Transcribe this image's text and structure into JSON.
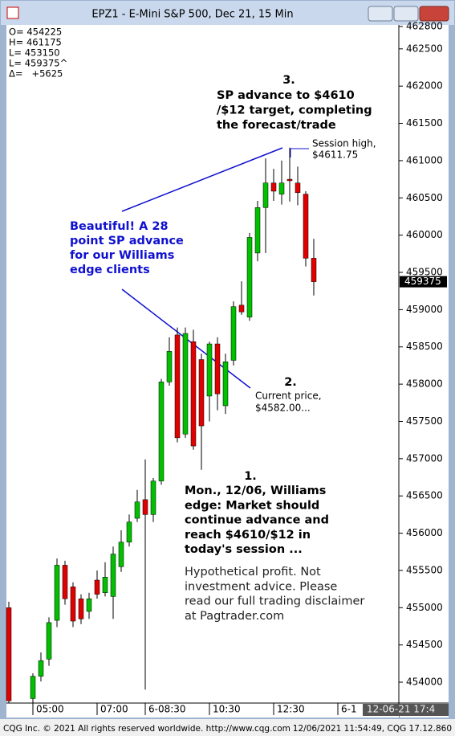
{
  "window_title": "EPZ1 - E-Mini S&P 500, Dec 21, 15 Min",
  "chart_data": {
    "type": "candlestick",
    "summary": [
      "O= 454225",
      "H= 461175",
      "L= 453150",
      "L= 459375^",
      "Δ=   +5625"
    ],
    "categories": [
      null,
      null,
      null,
      "05:00",
      null,
      null,
      null,
      null,
      null,
      null,
      null,
      "07:00",
      null,
      null,
      null,
      null,
      null,
      "6-08:30",
      null,
      null,
      null,
      null,
      null,
      null,
      null,
      "10:30",
      null,
      null,
      null,
      null,
      null,
      null,
      null,
      "12:30",
      null,
      null,
      null,
      null,
      null,
      null,
      null,
      "6-1"
    ],
    "open": [
      455000,
      null,
      null,
      453780,
      454080,
      454310,
      454830,
      455570,
      455280,
      455120,
      454950,
      455370,
      455200,
      455150,
      455550,
      455880,
      456200,
      456450,
      456250,
      456700,
      458030,
      458660,
      457330,
      458570,
      458330,
      457840,
      458540,
      457710,
      458320,
      459060,
      458900,
      459760,
      460370,
      460700,
      460550,
      460750,
      460700,
      460550,
      459690,
      null,
      null,
      null
    ],
    "high": [
      455080,
      null,
      null,
      454120,
      454400,
      454870,
      455660,
      455630,
      455340,
      455180,
      455200,
      455500,
      455610,
      455820,
      456040,
      456250,
      456580,
      456990,
      456740,
      458070,
      458630,
      458760,
      458760,
      458730,
      458410,
      458570,
      458630,
      458410,
      459110,
      459380,
      460030,
      460460,
      461030,
      460890,
      461000,
      461175,
      460920,
      460590,
      459950,
      null,
      null,
      null
    ],
    "low": [
      453720,
      null,
      null,
      453720,
      454010,
      454220,
      454740,
      455040,
      454740,
      454780,
      454850,
      455120,
      455150,
      454850,
      455480,
      455820,
      456150,
      453900,
      456150,
      456650,
      457980,
      457220,
      457280,
      457120,
      456850,
      457500,
      457650,
      457600,
      458250,
      458930,
      458850,
      459650,
      459760,
      460460,
      460410,
      460450,
      460400,
      459580,
      459190,
      null,
      null,
      null
    ],
    "close": [
      453750,
      null,
      null,
      454080,
      454290,
      454800,
      455570,
      455120,
      454820,
      454850,
      455120,
      455180,
      455410,
      455720,
      455880,
      456150,
      456420,
      456250,
      456700,
      458030,
      458440,
      457280,
      458680,
      457170,
      457440,
      458540,
      457870,
      458300,
      459040,
      458970,
      459970,
      460370,
      460700,
      460590,
      460700,
      460730,
      460570,
      459690,
      459375,
      null,
      null,
      null
    ],
    "up_color": "#00c000",
    "down_color": "#e00000",
    "ylim": [
      453720,
      462800
    ],
    "yticks": [
      454000,
      454500,
      455000,
      455500,
      456000,
      456500,
      457000,
      457500,
      458000,
      458500,
      459000,
      459500,
      460000,
      460500,
      461000,
      461500,
      462000,
      462500,
      462800
    ],
    "last_price": 459375,
    "time_box": "12-06-21 17:4",
    "annotations": {
      "note3": {
        "number": "3.",
        "lines": [
          "SP advance to $4610",
          "/$12 target, completing",
          "the forecast/trade"
        ]
      },
      "session_high": [
        "Session high,",
        "$4611.75"
      ],
      "beautiful": [
        "Beautiful! A 28",
        "point SP advance",
        "for our Williams",
        "edge clients"
      ],
      "note2": {
        "number": "2.",
        "lines": [
          "Current price,",
          "$4582.00..."
        ]
      },
      "note1": {
        "number": "1.",
        "lines": [
          "Mon., 12/06, Williams",
          "edge: Market should",
          "continue advance and",
          "reach $4610/$12 in",
          "today's session ..."
        ]
      },
      "disclaimer": [
        "Hypothetical profit. Not",
        "investment advice. Please",
        "read our full trading disclaimer",
        "at Pagtrader.com"
      ]
    }
  },
  "footer": {
    "left": "CQG Inc. © 2021 All rights reserved worldwide. http://www.cqg.com",
    "right": "12/06/2021 11:54:49, CQG 17.12.860"
  }
}
